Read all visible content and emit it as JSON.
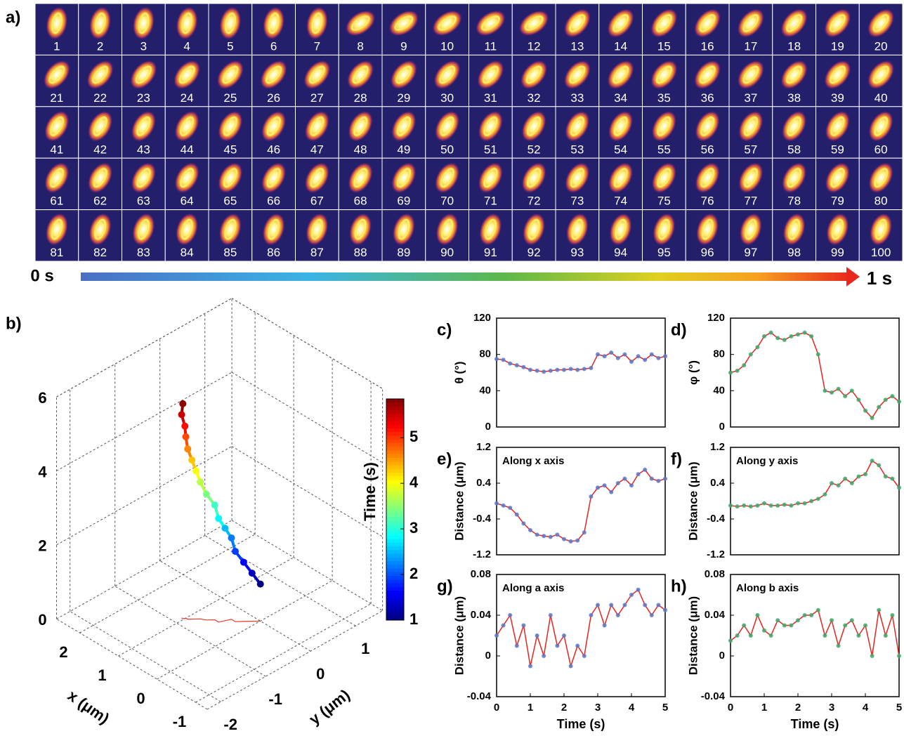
{
  "panel_a": {
    "label": "a)",
    "frames": [
      1,
      2,
      3,
      4,
      5,
      6,
      7,
      8,
      9,
      10,
      11,
      12,
      13,
      14,
      15,
      16,
      17,
      18,
      19,
      20,
      21,
      22,
      23,
      24,
      25,
      26,
      27,
      28,
      29,
      30,
      31,
      32,
      33,
      34,
      35,
      36,
      37,
      38,
      39,
      40,
      41,
      42,
      43,
      44,
      45,
      46,
      47,
      48,
      49,
      50,
      51,
      52,
      53,
      54,
      55,
      56,
      57,
      58,
      59,
      60,
      61,
      62,
      63,
      64,
      65,
      66,
      67,
      68,
      69,
      70,
      71,
      72,
      73,
      74,
      75,
      76,
      77,
      78,
      79,
      80,
      81,
      82,
      83,
      84,
      85,
      86,
      87,
      88,
      89,
      90,
      91,
      92,
      93,
      94,
      95,
      96,
      97,
      98,
      99,
      100
    ],
    "time_start": "0 s",
    "time_end": "1 s"
  },
  "chart_data": [
    {
      "type": "scatter3d",
      "label": "b)",
      "xlabel": "x (μm)",
      "ylabel": "y (μm)",
      "colorbar_label": "Time (s)",
      "x": [
        0.0,
        0.1,
        0.2,
        0.3,
        0.4,
        0.45,
        0.5,
        0.6,
        0.7,
        0.8,
        0.85,
        0.9,
        0.95,
        1.0,
        1.0,
        1.05,
        1.03
      ],
      "y": [
        0.0,
        -0.1,
        -0.2,
        -0.3,
        -0.3,
        -0.4,
        -0.5,
        -0.5,
        -0.6,
        -0.65,
        -0.7,
        -0.75,
        -0.8,
        -0.8,
        -0.82,
        -0.85,
        -0.84
      ],
      "z": [
        1.0,
        1.3,
        1.6,
        1.9,
        2.2,
        2.5,
        2.8,
        3.1,
        3.4,
        3.7,
        4.0,
        4.3,
        4.6,
        4.9,
        5.2,
        5.5,
        5.8
      ],
      "time": [
        1.0,
        1.3,
        1.6,
        1.9,
        2.2,
        2.5,
        2.8,
        3.1,
        3.4,
        3.7,
        4.0,
        4.3,
        4.6,
        4.9,
        5.2,
        5.5,
        5.8
      ],
      "xlim": [
        -1.3,
        2.6
      ],
      "ylim": [
        -2.3,
        1.6
      ],
      "zlim": [
        0,
        6
      ],
      "xticks": [
        2,
        1,
        0,
        -1
      ],
      "yticks": [
        1,
        0,
        -1,
        -2
      ],
      "zticks": [
        0,
        2,
        4,
        6
      ],
      "clim": [
        1,
        5.85
      ],
      "cticks": [
        1,
        2,
        3,
        4,
        5
      ],
      "projection_color": "#e53a2a"
    },
    {
      "type": "line",
      "label": "c)",
      "ylabel": "θ (°)",
      "dot_color": "#5b78c8",
      "line_color": "#e8231f",
      "x": [
        0,
        0.2,
        0.4,
        0.6,
        0.8,
        1,
        1.2,
        1.4,
        1.6,
        1.8,
        2,
        2.2,
        2.4,
        2.6,
        2.8,
        3,
        3.2,
        3.4,
        3.6,
        3.8,
        4,
        4.2,
        4.4,
        4.6,
        4.8,
        5
      ],
      "values": [
        75,
        74,
        70,
        68,
        66,
        63,
        62,
        61,
        62,
        63,
        63,
        64,
        63,
        64,
        65,
        80,
        78,
        82,
        76,
        80,
        72,
        78,
        74,
        80,
        76,
        78
      ],
      "xlim": [
        0,
        5
      ],
      "ylim": [
        0,
        120
      ],
      "yticks": [
        0,
        40,
        80,
        120
      ]
    },
    {
      "type": "line",
      "label": "d)",
      "ylabel": "φ (°)",
      "dot_color": "#3fa86a",
      "line_color": "#e8231f",
      "x": [
        0,
        0.2,
        0.4,
        0.6,
        0.8,
        1,
        1.2,
        1.4,
        1.6,
        1.8,
        2,
        2.2,
        2.4,
        2.6,
        2.8,
        3,
        3.2,
        3.4,
        3.6,
        3.8,
        4,
        4.2,
        4.4,
        4.6,
        4.8,
        5
      ],
      "values": [
        60,
        62,
        68,
        80,
        88,
        100,
        104,
        98,
        96,
        100,
        102,
        104,
        100,
        80,
        40,
        38,
        42,
        34,
        40,
        30,
        18,
        10,
        22,
        30,
        34,
        28
      ],
      "xlim": [
        0,
        5
      ],
      "ylim": [
        0,
        120
      ],
      "yticks": [
        0,
        40,
        80,
        120
      ]
    },
    {
      "type": "line",
      "label": "e)",
      "ylabel": "Distance (μm)",
      "annotation": "Along x axis",
      "dot_color": "#5b78c8",
      "line_color": "#e8231f",
      "x": [
        0,
        0.2,
        0.4,
        0.6,
        0.8,
        1,
        1.2,
        1.4,
        1.6,
        1.8,
        2,
        2.2,
        2.4,
        2.6,
        2.8,
        3,
        3.2,
        3.4,
        3.6,
        3.8,
        4,
        4.2,
        4.4,
        4.6,
        4.8,
        5
      ],
      "values": [
        -0.05,
        -0.1,
        -0.15,
        -0.3,
        -0.5,
        -0.65,
        -0.75,
        -0.78,
        -0.8,
        -0.75,
        -0.85,
        -0.9,
        -0.88,
        -0.7,
        0.1,
        0.3,
        0.35,
        0.2,
        0.4,
        0.5,
        0.35,
        0.6,
        0.7,
        0.5,
        0.45,
        0.5
      ],
      "xlim": [
        0,
        5
      ],
      "ylim": [
        -1.2,
        1.2
      ],
      "yticks": [
        -1.2,
        -0.4,
        0.4,
        1.2
      ]
    },
    {
      "type": "line",
      "label": "f)",
      "ylabel": "Distance (μm)",
      "annotation": "Along y axis",
      "dot_color": "#3fa86a",
      "line_color": "#e8231f",
      "x": [
        0,
        0.2,
        0.4,
        0.6,
        0.8,
        1,
        1.2,
        1.4,
        1.6,
        1.8,
        2,
        2.2,
        2.4,
        2.6,
        2.8,
        3,
        3.2,
        3.4,
        3.6,
        3.8,
        4,
        4.2,
        4.4,
        4.6,
        4.8,
        5
      ],
      "values": [
        -0.1,
        -0.12,
        -0.1,
        -0.12,
        -0.1,
        -0.05,
        -0.1,
        -0.1,
        -0.08,
        -0.1,
        -0.05,
        -0.05,
        0.0,
        0.05,
        0.15,
        0.4,
        0.35,
        0.5,
        0.4,
        0.55,
        0.6,
        0.9,
        0.8,
        0.55,
        0.5,
        0.3
      ],
      "xlim": [
        0,
        5
      ],
      "ylim": [
        -1.2,
        1.2
      ],
      "yticks": [
        -1.2,
        -0.4,
        0.4,
        1.2
      ]
    },
    {
      "type": "line",
      "label": "g)",
      "ylabel": "Distance (μm)",
      "annotation": "Along a axis",
      "xlabel": "Time (s)",
      "dot_color": "#5b78c8",
      "line_color": "#e8231f",
      "x": [
        0,
        0.2,
        0.4,
        0.6,
        0.8,
        1,
        1.2,
        1.4,
        1.6,
        1.8,
        2,
        2.2,
        2.4,
        2.6,
        2.8,
        3,
        3.2,
        3.4,
        3.6,
        3.8,
        4,
        4.2,
        4.4,
        4.6,
        4.8,
        5
      ],
      "values": [
        0.02,
        0.03,
        0.04,
        0.01,
        0.03,
        -0.01,
        0.02,
        0.0,
        0.04,
        0.01,
        0.02,
        -0.01,
        0.01,
        0.0,
        0.04,
        0.05,
        0.03,
        0.05,
        0.04,
        0.05,
        0.06,
        0.065,
        0.05,
        0.04,
        0.05,
        0.045
      ],
      "xlim": [
        0,
        5
      ],
      "xticks": [
        0,
        1,
        2,
        3,
        4,
        5
      ],
      "ylim": [
        -0.04,
        0.08
      ],
      "yticks": [
        -0.04,
        0,
        0.04,
        0.08
      ]
    },
    {
      "type": "line",
      "label": "h)",
      "ylabel": "Distance (μm)",
      "annotation": "Along b axis",
      "xlabel": "Time (s)",
      "dot_color": "#3fa86a",
      "line_color": "#e8231f",
      "x": [
        0,
        0.2,
        0.4,
        0.6,
        0.8,
        1,
        1.2,
        1.4,
        1.6,
        1.8,
        2,
        2.2,
        2.4,
        2.6,
        2.8,
        3,
        3.2,
        3.4,
        3.6,
        3.8,
        4,
        4.2,
        4.4,
        4.6,
        4.8,
        5
      ],
      "values": [
        0.015,
        0.02,
        0.03,
        0.02,
        0.04,
        0.025,
        0.02,
        0.035,
        0.03,
        0.03,
        0.035,
        0.04,
        0.04,
        0.045,
        0.02,
        0.035,
        0.01,
        0.03,
        0.035,
        0.02,
        0.03,
        0.0,
        0.045,
        0.02,
        0.04,
        0.0
      ],
      "xlim": [
        0,
        5
      ],
      "xticks": [
        0,
        1,
        2,
        3,
        4,
        5
      ],
      "ylim": [
        -0.04,
        0.08
      ],
      "yticks": [
        -0.04,
        0,
        0.04,
        0.08
      ]
    }
  ]
}
